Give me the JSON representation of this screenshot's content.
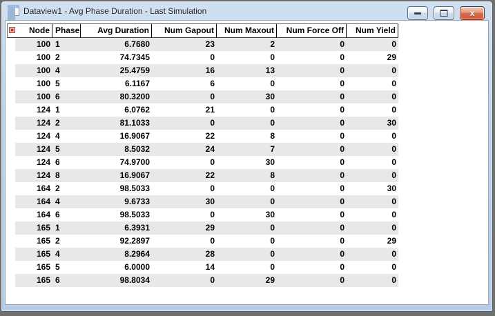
{
  "window": {
    "title": "Dataview1 - Avg Phase Duration - Last Simulation",
    "icons": {
      "title_icon": "table-grid",
      "minimize": "dash",
      "maximize": "square-outline",
      "close": "x-cross",
      "dataview_menu": "red-grid-button"
    },
    "close_glyph": "x"
  },
  "colors": {
    "titlebar_blue": "#bdd3ea",
    "row_alt_gray": "#e8e8e8",
    "close_button_red": "#cf5a3c",
    "header_line": "#000000"
  },
  "table": {
    "columns": [
      {
        "label": "Node"
      },
      {
        "label": "Phase"
      },
      {
        "label": "Avg Duration"
      },
      {
        "label": "Num Gapout"
      },
      {
        "label": "Num Maxout"
      },
      {
        "label": "Num Force Off"
      },
      {
        "label": "Num Yield"
      }
    ],
    "rows": [
      {
        "node": "100",
        "phase": "1",
        "avg_duration": "6.7680",
        "num_gapout": "23",
        "num_maxout": "2",
        "num_force_off": "0",
        "num_yield": "0"
      },
      {
        "node": "100",
        "phase": "2",
        "avg_duration": "74.7345",
        "num_gapout": "0",
        "num_maxout": "0",
        "num_force_off": "0",
        "num_yield": "29"
      },
      {
        "node": "100",
        "phase": "4",
        "avg_duration": "25.4759",
        "num_gapout": "16",
        "num_maxout": "13",
        "num_force_off": "0",
        "num_yield": "0"
      },
      {
        "node": "100",
        "phase": "5",
        "avg_duration": "6.1167",
        "num_gapout": "6",
        "num_maxout": "0",
        "num_force_off": "0",
        "num_yield": "0"
      },
      {
        "node": "100",
        "phase": "6",
        "avg_duration": "80.3200",
        "num_gapout": "0",
        "num_maxout": "30",
        "num_force_off": "0",
        "num_yield": "0"
      },
      {
        "node": "124",
        "phase": "1",
        "avg_duration": "6.0762",
        "num_gapout": "21",
        "num_maxout": "0",
        "num_force_off": "0",
        "num_yield": "0"
      },
      {
        "node": "124",
        "phase": "2",
        "avg_duration": "81.1033",
        "num_gapout": "0",
        "num_maxout": "0",
        "num_force_off": "0",
        "num_yield": "30"
      },
      {
        "node": "124",
        "phase": "4",
        "avg_duration": "16.9067",
        "num_gapout": "22",
        "num_maxout": "8",
        "num_force_off": "0",
        "num_yield": "0"
      },
      {
        "node": "124",
        "phase": "5",
        "avg_duration": "8.5032",
        "num_gapout": "24",
        "num_maxout": "7",
        "num_force_off": "0",
        "num_yield": "0"
      },
      {
        "node": "124",
        "phase": "6",
        "avg_duration": "74.9700",
        "num_gapout": "0",
        "num_maxout": "30",
        "num_force_off": "0",
        "num_yield": "0"
      },
      {
        "node": "124",
        "phase": "8",
        "avg_duration": "16.9067",
        "num_gapout": "22",
        "num_maxout": "8",
        "num_force_off": "0",
        "num_yield": "0"
      },
      {
        "node": "164",
        "phase": "2",
        "avg_duration": "98.5033",
        "num_gapout": "0",
        "num_maxout": "0",
        "num_force_off": "0",
        "num_yield": "30"
      },
      {
        "node": "164",
        "phase": "4",
        "avg_duration": "9.6733",
        "num_gapout": "30",
        "num_maxout": "0",
        "num_force_off": "0",
        "num_yield": "0"
      },
      {
        "node": "164",
        "phase": "6",
        "avg_duration": "98.5033",
        "num_gapout": "0",
        "num_maxout": "30",
        "num_force_off": "0",
        "num_yield": "0"
      },
      {
        "node": "165",
        "phase": "1",
        "avg_duration": "6.3931",
        "num_gapout": "29",
        "num_maxout": "0",
        "num_force_off": "0",
        "num_yield": "0"
      },
      {
        "node": "165",
        "phase": "2",
        "avg_duration": "92.2897",
        "num_gapout": "0",
        "num_maxout": "0",
        "num_force_off": "0",
        "num_yield": "29"
      },
      {
        "node": "165",
        "phase": "4",
        "avg_duration": "8.2964",
        "num_gapout": "28",
        "num_maxout": "0",
        "num_force_off": "0",
        "num_yield": "0"
      },
      {
        "node": "165",
        "phase": "5",
        "avg_duration": "6.0000",
        "num_gapout": "14",
        "num_maxout": "0",
        "num_force_off": "0",
        "num_yield": "0"
      },
      {
        "node": "165",
        "phase": "6",
        "avg_duration": "98.8034",
        "num_gapout": "0",
        "num_maxout": "29",
        "num_force_off": "0",
        "num_yield": "0"
      }
    ]
  }
}
